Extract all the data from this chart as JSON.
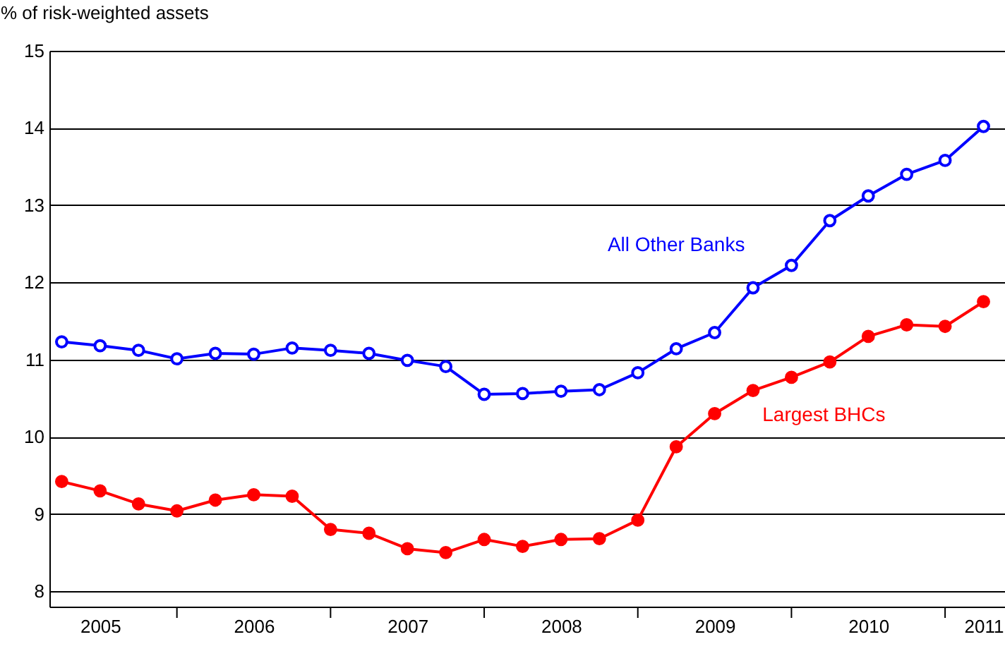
{
  "chart_data": {
    "type": "line",
    "ylabel": "% of risk-weighted assets",
    "x": [
      2005.25,
      2005.5,
      2005.75,
      2006.0,
      2006.25,
      2006.5,
      2006.75,
      2007.0,
      2007.25,
      2007.5,
      2007.75,
      2008.0,
      2008.25,
      2008.5,
      2008.75,
      2009.0,
      2009.25,
      2009.5,
      2009.75,
      2010.0,
      2010.25,
      2010.5,
      2010.75,
      2011.0,
      2011.25
    ],
    "series": [
      {
        "name": "All Other Banks",
        "color": "#0000ff",
        "values": [
          11.23,
          11.18,
          11.12,
          11.01,
          11.08,
          11.07,
          11.15,
          11.12,
          11.08,
          10.99,
          10.91,
          10.55,
          10.56,
          10.59,
          10.61,
          10.83,
          11.14,
          11.35,
          11.93,
          12.22,
          12.8,
          13.12,
          13.4,
          13.58,
          14.02
        ]
      },
      {
        "name": "Largest BHCs",
        "color": "#ff0000",
        "values": [
          9.42,
          9.3,
          9.13,
          9.04,
          9.18,
          9.25,
          9.23,
          8.8,
          8.75,
          8.55,
          8.5,
          8.67,
          8.58,
          8.67,
          8.68,
          8.92,
          9.87,
          10.3,
          10.6,
          10.77,
          10.97,
          11.3,
          11.45,
          11.43,
          11.75
        ]
      }
    ],
    "xlim": [
      2005.17,
      2011.39
    ],
    "xticks": [
      {
        "value": 2005.5,
        "label": "2005"
      },
      {
        "value": 2006.0,
        "label": null
      },
      {
        "value": 2006.5,
        "label": "2006"
      },
      {
        "value": 2007.0,
        "label": null
      },
      {
        "value": 2007.5,
        "label": "2007"
      },
      {
        "value": 2008.0,
        "label": null
      },
      {
        "value": 2008.5,
        "label": "2008"
      },
      {
        "value": 2009.0,
        "label": null
      },
      {
        "value": 2009.5,
        "label": "2009"
      },
      {
        "value": 2010.0,
        "label": null
      },
      {
        "value": 2010.5,
        "label": "2010"
      },
      {
        "value": 2011.0,
        "label": null
      },
      {
        "value": 2011.25,
        "label": "2011"
      }
    ],
    "ylim": [
      7.8,
      15
    ],
    "yticks": [
      8,
      9,
      10,
      11,
      12,
      13,
      14,
      15
    ],
    "grid": "y",
    "marker": "circle",
    "line_style": "solid"
  }
}
